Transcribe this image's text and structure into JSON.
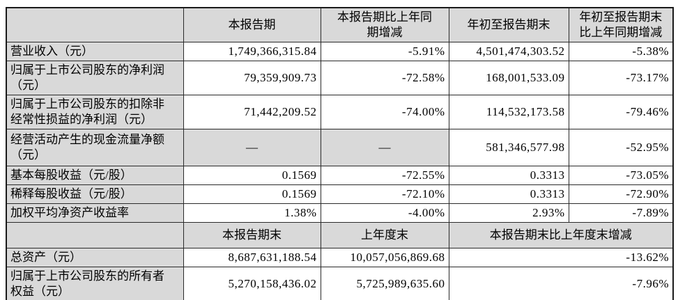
{
  "colors": {
    "header_shade": "#d9d9d9",
    "border": "#2a2a2a",
    "background": "#ffffff"
  },
  "table": {
    "header1": {
      "corner": "",
      "current_period": "本报告期",
      "current_vs_prior": "本报告期比上年同\n期增减",
      "ytd": "年初至报告期末",
      "ytd_vs_prior": "年初至报告期末\n比上年同期增减"
    },
    "rows1": [
      {
        "label": "营业收入（元）",
        "current": "1,749,366,315.84",
        "yoy": "-5.91%",
        "ytd": "4,501,474,303.52",
        "ytd_yoy": "-5.38%"
      },
      {
        "label": "归属于上市公司股东的净利润\n（元）",
        "current": "79,359,909.73",
        "yoy": "-72.58%",
        "ytd": "168,001,533.09",
        "ytd_yoy": "-73.17%"
      },
      {
        "label": "归属于上市公司股东的扣除非\n经常性损益的净利润（元）",
        "current": "71,442,209.52",
        "yoy": "-74.00%",
        "ytd": "114,532,173.58",
        "ytd_yoy": "-79.46%"
      },
      {
        "label": "经营活动产生的现金流量净额\n（元）",
        "current": "—",
        "yoy": "—",
        "ytd": "581,346,577.98",
        "ytd_yoy": "-52.95%"
      },
      {
        "label": "基本每股收益（元/股）",
        "current": "0.1569",
        "yoy": "-72.55%",
        "ytd": "0.3313",
        "ytd_yoy": "-73.05%"
      },
      {
        "label": "稀释每股收益（元/股）",
        "current": "0.1569",
        "yoy": "-72.10%",
        "ytd": "0.3313",
        "ytd_yoy": "-72.90%"
      },
      {
        "label": "加权平均净资产收益率",
        "current": "1.38%",
        "yoy": "-4.00%",
        "ytd": "2.93%",
        "ytd_yoy": "-7.89%"
      }
    ],
    "header2": {
      "corner": "",
      "period_end": "本报告期末",
      "prior_year_end": "上年度末",
      "end_vs_prior": "本报告期末比上年度末增减"
    },
    "rows2": [
      {
        "label": "总资产（元）",
        "period_end": "8,687,631,188.54",
        "prior_year_end": "10,057,056,869.68",
        "change": "-13.62%"
      },
      {
        "label": "归属于上市公司股东的所有者\n权益（元）",
        "period_end": "5,270,158,436.02",
        "prior_year_end": "5,725,989,635.60",
        "change": "-7.96%"
      }
    ]
  }
}
